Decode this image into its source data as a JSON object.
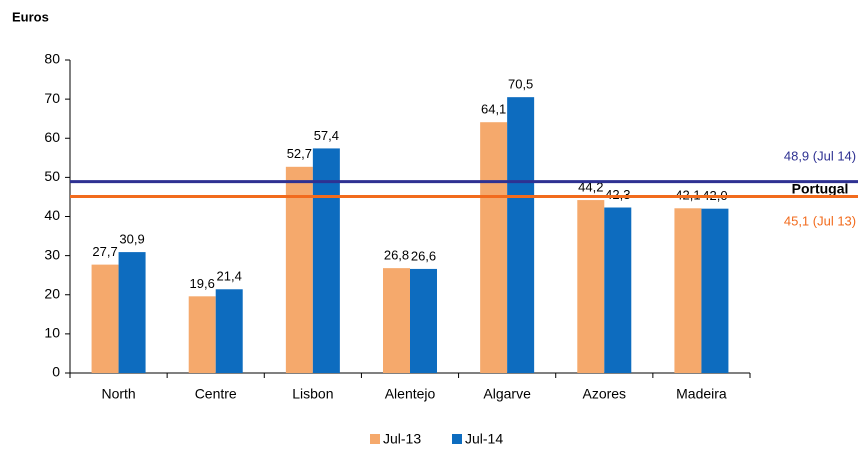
{
  "chart_data": {
    "type": "bar",
    "y_label": "Euros",
    "categories": [
      "North",
      "Centre",
      "Lisbon",
      "Alentejo",
      "Algarve",
      "Azores",
      "Madeira"
    ],
    "series": [
      {
        "name": "Jul-13",
        "color": "#f5a96c",
        "values": [
          27.7,
          19.6,
          52.7,
          26.8,
          64.1,
          44.2,
          42.1
        ],
        "value_labels": [
          "27,7",
          "19,6",
          "52,7",
          "26,8",
          "64,1",
          "44,2",
          "42,1"
        ]
      },
      {
        "name": "Jul-14",
        "color": "#0d6cbf",
        "values": [
          30.9,
          21.4,
          57.4,
          26.6,
          70.5,
          42.3,
          42.0
        ],
        "value_labels": [
          "30,9",
          "21,4",
          "57,4",
          "26,6",
          "70,5",
          "42,3",
          "42,0"
        ]
      }
    ],
    "reference_group_label": "Portugal",
    "reference_lines": [
      {
        "value": 48.9,
        "label": "48,9 (Jul 14)",
        "color": "#2e3192"
      },
      {
        "value": 45.1,
        "label": "45,1 (Jul 13)",
        "color": "#f26b1d"
      }
    ],
    "ylim": [
      0,
      80
    ],
    "yticks": [
      0,
      10,
      20,
      30,
      40,
      50,
      60,
      70,
      80
    ],
    "grid": false
  }
}
